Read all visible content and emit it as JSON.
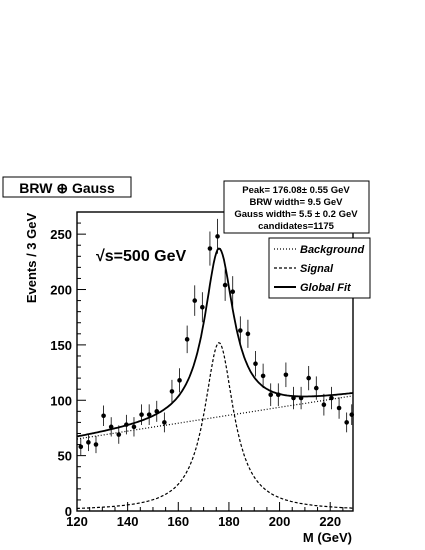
{
  "chart_data": {
    "type": "scatter",
    "title": "BRW ⊕ Gauss",
    "xlabel": "M (GeV)",
    "ylabel": "Events / 3 GeV",
    "xlim": [
      120,
      229
    ],
    "ylim": [
      0,
      270
    ],
    "x_ticks": [
      120,
      140,
      160,
      180,
      200,
      220
    ],
    "y_ticks": [
      0,
      50,
      100,
      150,
      200,
      250
    ],
    "x_tick_labels": [
      "120",
      "140",
      "160",
      "180",
      "200",
      "220"
    ],
    "y_tick_labels": [
      "0",
      "50",
      "100",
      "150",
      "200",
      "250"
    ],
    "annotation": "√s=500 GeV",
    "stats_box": [
      "Peak= 176.08± 0.55 GeV",
      "BRW   width= 9.5 GeV",
      "Gauss width= 5.5 ±  0.2 GeV",
      "candidates=1175"
    ],
    "legend": {
      "placement": "top-right",
      "entries": [
        {
          "label": "Background",
          "style": "dotted"
        },
        {
          "label": "Signal",
          "style": "dashed"
        },
        {
          "label": "Global Fit",
          "style": "solid"
        }
      ]
    },
    "grid": false,
    "fit": {
      "peak": 176.08,
      "signal_amplitude": 152,
      "signal_sigma": 7.0,
      "background_start": 65,
      "background_end": 104
    },
    "series": [
      {
        "name": "Data",
        "x": [
          121.5,
          124.5,
          127.5,
          130.5,
          133.5,
          136.5,
          139.5,
          142.5,
          145.5,
          148.5,
          151.5,
          154.5,
          157.5,
          160.5,
          163.5,
          166.5,
          169.5,
          172.5,
          175.5,
          178.5,
          181.5,
          184.5,
          187.5,
          190.5,
          193.5,
          196.5,
          199.5,
          202.5,
          205.5,
          208.5,
          211.5,
          214.5,
          217.5,
          220.5,
          223.5,
          226.5,
          228.5
        ],
        "y": [
          58,
          62,
          60,
          86,
          76,
          69,
          78,
          76,
          87,
          87,
          90,
          80,
          108,
          118,
          155,
          190,
          184,
          237,
          248,
          204,
          198,
          163,
          160,
          133,
          122,
          105,
          105,
          123,
          102,
          102,
          120,
          111,
          96,
          102,
          93,
          80,
          87
        ]
      }
    ]
  }
}
